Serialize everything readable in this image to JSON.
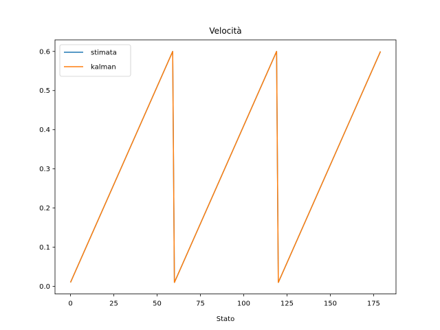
{
  "chart_data": {
    "type": "line",
    "title": "Velocità",
    "xlabel": "Stato",
    "ylabel": "",
    "xlim": [
      -8.95,
      187.95
    ],
    "ylim": [
      -0.0195,
      0.6295
    ],
    "xticks": [
      0,
      25,
      50,
      75,
      100,
      125,
      150,
      175
    ],
    "yticks": [
      0.0,
      0.1,
      0.2,
      0.3,
      0.4,
      0.5,
      0.6
    ],
    "ytick_labels": [
      "0.0",
      "0.1",
      "0.2",
      "0.3",
      "0.4",
      "0.5",
      "0.6"
    ],
    "grid": false,
    "legend_position": "upper-left",
    "series": [
      {
        "name": "stimata",
        "color": "#1f77b4",
        "x": [
          0,
          59,
          60,
          119,
          120,
          179
        ],
        "y": [
          0.01,
          0.6,
          0.01,
          0.6,
          0.01,
          0.6
        ]
      },
      {
        "name": "kalman",
        "color": "#ff7f0e",
        "x": [
          0,
          59,
          60,
          119,
          120,
          179
        ],
        "y": [
          0.01,
          0.6,
          0.01,
          0.6,
          0.01,
          0.6
        ]
      }
    ]
  }
}
